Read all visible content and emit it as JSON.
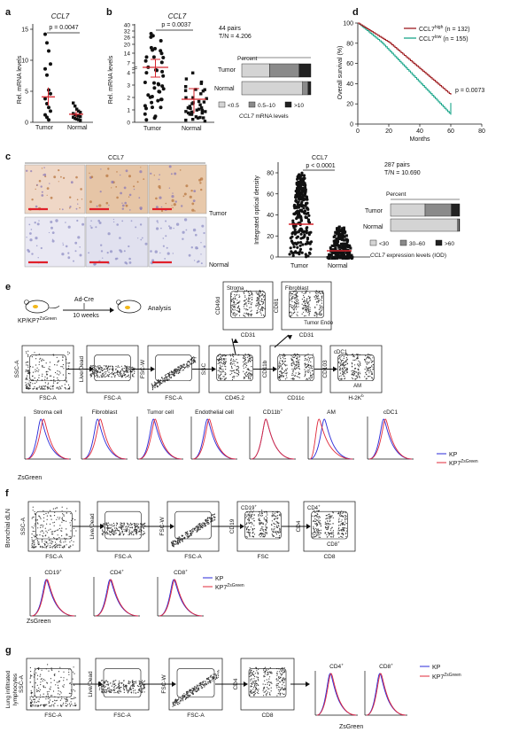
{
  "panels": {
    "a": {
      "letter": "a",
      "title": "CCL7",
      "ylabel": "Rel. mRNA levels",
      "pvalue": "p = 0.0047",
      "yticks": [
        "0",
        "5",
        "10",
        "15"
      ],
      "categories": [
        "Tumor",
        "Normal"
      ],
      "accent_color": "#d7262e"
    },
    "b": {
      "letter": "b",
      "title": "CCL7",
      "ylabel": "Rel. mRNA levels",
      "pvalue": "p = 0.0037",
      "yticks": [
        "0",
        "1",
        "2",
        "3",
        "4",
        "7",
        "14",
        "20",
        "26",
        "32",
        "40"
      ],
      "categories": [
        "Tumor",
        "Normal"
      ],
      "pairs": "44 pairs",
      "ratio": "T/N = 4.206",
      "percent_label": "Percent",
      "bar_rows": [
        "Tumor",
        "Normal"
      ],
      "legend": [
        "<0.5",
        "0.5–10",
        ">10"
      ],
      "legend_title_italic": "CCL7",
      "legend_title_rest": "mRNA levels"
    },
    "c": {
      "letter": "c",
      "image_title": "CCL7",
      "row_labels": [
        "Tumor",
        "Normal"
      ],
      "plot_title": "CCL7",
      "ylabel": "Integrated optical density",
      "pvalue": "p < 0.0001",
      "yticks": [
        "0",
        "20",
        "40",
        "60",
        "80"
      ],
      "categories": [
        "Tumor",
        "Normal"
      ],
      "pairs": "287 pairs",
      "ratio": "T/N = 10.690",
      "percent_label": "Percent",
      "bar_rows": [
        "Tumor",
        "Normal"
      ],
      "legend": [
        "<30",
        "30–60",
        ">60"
      ],
      "legend_title_italic": "CCL7",
      "legend_title_rest": "expression levels (IOD)"
    },
    "d": {
      "letter": "d",
      "ylabel": "Overall survival (%)",
      "xlabel": "Months",
      "yticks": [
        "0",
        "20",
        "40",
        "60",
        "80",
        "100"
      ],
      "xticks": [
        "0",
        "20",
        "40",
        "60",
        "80"
      ],
      "pvalue": "p = 0.0073",
      "legend_high": "CCL7",
      "legend_high_sup": "high",
      "legend_high_n": "(n = 132)",
      "legend_low": "CCL7",
      "legend_low_sup": "low",
      "legend_low_n": "(n = 155)",
      "high_color": "#9e1b1f",
      "low_color": "#1aa68a"
    },
    "e": {
      "letter": "e",
      "mouse_label": "KP/KP7",
      "mouse_sup": "ZsGreen",
      "arrow_top": "Ad-Cre",
      "arrow_bottom": "10 weeks",
      "analysis": "Analysis",
      "gates_top": [
        {
          "y": "CD49d",
          "x": "CD31",
          "g1": "Stroma",
          "g2": ""
        },
        {
          "y": "CD81",
          "x": "CD31",
          "g1": "Fibroblast",
          "g2": "Tumor  Endo"
        }
      ],
      "gates_row": [
        {
          "y": "SSC-A",
          "x": "FSC-A"
        },
        {
          "y": "Live/Dead",
          "x": "FSC-A"
        },
        {
          "y": "FSC-W",
          "x": "FSC-A"
        },
        {
          "y": "SSC",
          "x": "CD45.2"
        },
        {
          "y": "CD11b",
          "x": "CD11c"
        },
        {
          "y": "CD103",
          "x": "H-2K",
          "xsup": "b",
          "g1": "cDC1",
          "g2": "AM"
        }
      ],
      "histograms": [
        "Stroma cell",
        "Fibroblast",
        "Tumor cell",
        "Endothelial cell",
        "CD11b",
        "AM",
        "cDC1"
      ],
      "hist_sup": [
        "",
        "",
        "",
        "",
        "+",
        "",
        ""
      ],
      "hist_xlabel": "ZsGreen",
      "legend_kp": "KP",
      "legend_kp7": "KP7",
      "legend_kp7_sup": "ZsGreen"
    },
    "f": {
      "letter": "f",
      "side_label": "Bronchial dLN",
      "gates_row": [
        {
          "y": "SSC-A",
          "x": "FSC-A"
        },
        {
          "y": "Live/Dead",
          "x": "FSC-A"
        },
        {
          "y": "FSC-W",
          "x": "FSC-A"
        },
        {
          "y": "CD19",
          "x": "FSC",
          "g1": "CD19",
          "g1sup": "+"
        },
        {
          "y": "CD4",
          "x": "CD8",
          "g1": "CD4",
          "g1sup": "+",
          "g2": "CD8",
          "g2sup": "+"
        }
      ],
      "histograms": [
        "CD19",
        "CD4",
        "CD8"
      ],
      "hist_sup": [
        "+",
        "+",
        "+"
      ],
      "hist_xlabel": "ZsGreen",
      "legend_kp": "KP",
      "legend_kp7": "KP7",
      "legend_kp7_sup": "ZsGreen"
    },
    "g": {
      "letter": "g",
      "side_label_1": "Lung infiltrated",
      "side_label_2": "lymphocytes",
      "gates_row": [
        {
          "y": "SSC-A",
          "x": "FSC-A"
        },
        {
          "y": "Live/Dead",
          "x": "FSC-A"
        },
        {
          "y": "FSC-W",
          "x": "FSC-A"
        },
        {
          "y": "CD4",
          "x": "CD8"
        }
      ],
      "histograms": [
        "CD4",
        "CD8"
      ],
      "hist_sup": [
        "+",
        "+"
      ],
      "hist_xlabel": "ZsGreen",
      "legend_kp": "KP",
      "legend_kp7": "KP7",
      "legend_kp7_sup": "ZsGreen"
    }
  },
  "colors": {
    "kp": "#2a2ad8",
    "kp7": "#e0283a",
    "red_mean": "#d7262e",
    "stack_light": "#d4d4d4",
    "stack_mid": "#8a8a8a",
    "stack_dark": "#222222"
  }
}
